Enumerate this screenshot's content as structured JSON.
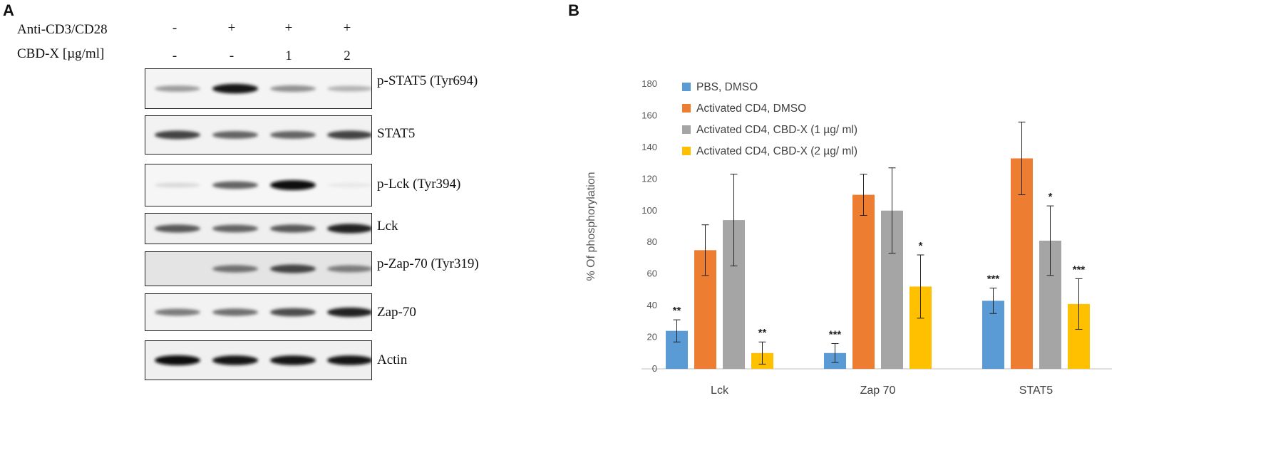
{
  "panel_a": {
    "letter": "A",
    "row1_label": "Anti-CD3/CD28",
    "row1_marks": [
      "-",
      "+",
      "+",
      "+"
    ],
    "row2_label": "CBD-X [µg/ml]",
    "row2_marks": [
      "-",
      "-",
      "1",
      "2"
    ],
    "blots": [
      {
        "label": "p-STAT5 (Tyr694)",
        "intensities": [
          0.35,
          0.95,
          0.4,
          0.25
        ],
        "background": "#f4f4f4"
      },
      {
        "label": "STAT5",
        "intensities": [
          0.75,
          0.6,
          0.6,
          0.75
        ],
        "background": "#f2f2f2"
      },
      {
        "label": "p-Lck (Tyr394)",
        "intensities": [
          0.08,
          0.6,
          1.0,
          0.02
        ],
        "background": "#f6f6f6"
      },
      {
        "label": "Lck",
        "intensities": [
          0.65,
          0.6,
          0.65,
          0.9
        ],
        "background": "#efefef"
      },
      {
        "label": "p-Zap-70 (Tyr319)",
        "intensities": [
          0.0,
          0.55,
          0.75,
          0.5
        ],
        "background": "#e4e4e4"
      },
      {
        "label": "Zap-70",
        "intensities": [
          0.5,
          0.55,
          0.7,
          0.9
        ],
        "background": "#f2f2f2"
      },
      {
        "label": "Actin",
        "intensities": [
          1.0,
          0.95,
          0.95,
          0.95
        ],
        "background": "#f0f0f0"
      }
    ]
  },
  "panel_b": {
    "letter": "B"
  },
  "chart_data": {
    "type": "bar",
    "title": "",
    "xlabel": "",
    "ylabel": "% Of phosphorylation",
    "ylim": [
      0,
      180
    ],
    "yticks": [
      0,
      20,
      40,
      60,
      80,
      100,
      120,
      140,
      160,
      180
    ],
    "grid": false,
    "legend_position": "top-left",
    "categories": [
      "Lck",
      "Zap 70",
      "STAT5"
    ],
    "series": [
      {
        "name": "PBS, DMSO",
        "color": "#5b9bd5",
        "values": [
          24,
          10,
          43
        ],
        "errors": [
          7,
          6,
          8
        ],
        "significance": [
          "**",
          "***",
          "***"
        ]
      },
      {
        "name": "Activated CD4, DMSO",
        "color": "#ed7d31",
        "values": [
          75,
          110,
          133
        ],
        "errors": [
          16,
          13,
          23
        ],
        "significance": [
          "",
          "",
          ""
        ]
      },
      {
        "name": "Activated CD4, CBD-X (1 µg/ ml)",
        "color": "#a5a5a5",
        "values": [
          94,
          100,
          81
        ],
        "errors": [
          29,
          27,
          22
        ],
        "significance": [
          "",
          "",
          "*"
        ]
      },
      {
        "name": "Activated CD4, CBD-X (2 µg/ ml)",
        "color": "#ffc000",
        "values": [
          10,
          52,
          41
        ],
        "errors": [
          7,
          20,
          16
        ],
        "significance": [
          "**",
          "*",
          "***"
        ]
      }
    ]
  }
}
